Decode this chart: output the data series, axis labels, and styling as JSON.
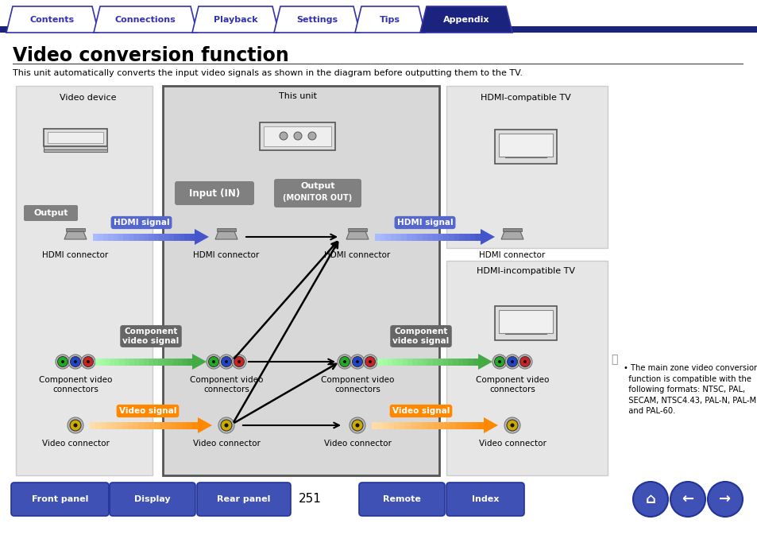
{
  "title": "Video conversion function",
  "subtitle": "This unit automatically converts the input video signals as shown in the diagram before outputting them to the TV.",
  "nav_tabs": [
    "Contents",
    "Connections",
    "Playback",
    "Settings",
    "Tips",
    "Appendix"
  ],
  "active_tab": "Appendix",
  "bottom_buttons": [
    "Front panel",
    "Display",
    "Rear panel",
    "Remote",
    "Index"
  ],
  "page_number": "251",
  "tab_color_inactive_fill": "#ffffff",
  "tab_color_inactive_text": "#3333aa",
  "tab_color_active_fill": "#1a237e",
  "tab_color_active_text": "#ffffff",
  "tab_border_color": "#3333aa",
  "nav_bar_color": "#1a237e",
  "bg_color": "#ffffff",
  "bottom_btn_color": "#3f51b5",
  "light_gray_bg": "#e6e6e6",
  "center_box_bg": "#d8d8d8",
  "dark_gray_box": "#808080",
  "blue_arrow_color": "#4455cc",
  "blue_arrow_light": "#aabbff",
  "green_arrow_color": "#44aa44",
  "green_arrow_light": "#aaffaa",
  "orange_arrow_color": "#ff8800",
  "orange_arrow_light": "#ffddaa",
  "hdmi_signal_bg": "#5566cc",
  "component_signal_bg": "#666666",
  "video_signal_bg": "#ff8800",
  "line_color": "#333333",
  "note_text_line1": "The main zone video conversion",
  "note_text_line2": "function is compatible with the",
  "note_text_line3": "following formats: NTSC, PAL,",
  "note_text_line4": "SECAM, NTSC4.43, PAL-N, PAL-M",
  "note_text_line5": "and PAL-60."
}
